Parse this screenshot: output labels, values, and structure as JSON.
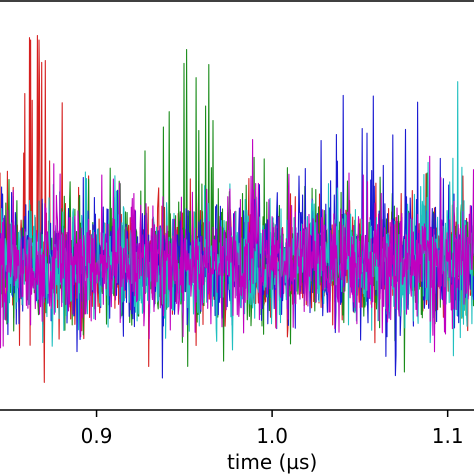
{
  "chart_data": {
    "type": "line",
    "title": "",
    "xlabel": "time (µs)",
    "ylabel": "",
    "xlim": [
      0.845,
      1.115
    ],
    "ylim": [
      -1.25,
      2.25
    ],
    "x_ticks": [
      {
        "value": 0.9,
        "label": "0.9"
      },
      {
        "value": 1.0,
        "label": "1.0"
      },
      {
        "value": 1.1,
        "label": "1.1"
      }
    ],
    "grid": false,
    "legend": "none",
    "noise_amplitude": 0.4,
    "series": [
      {
        "color": "#d62020",
        "burst_center": 0.868,
        "burst_width": 0.014,
        "burst_peak": 2.2,
        "spike_density": 0.18
      },
      {
        "color": "#1a8c1a",
        "burst_center": 0.953,
        "burst_width": 0.03,
        "burst_peak": 2.25,
        "spike_density": 0.14
      },
      {
        "color": "#1a1ad2",
        "burst_center": 1.06,
        "burst_width": 0.032,
        "burst_peak": 2.1,
        "spike_density": 0.13
      },
      {
        "color": "#20c0c0",
        "burst_center": 1.11,
        "burst_width": 0.02,
        "burst_peak": 1.6,
        "spike_density": 0.08
      },
      {
        "color": "#c000c0",
        "burst_center": null,
        "burst_width": 0,
        "burst_peak": 0,
        "spike_density": 0.0
      }
    ]
  }
}
